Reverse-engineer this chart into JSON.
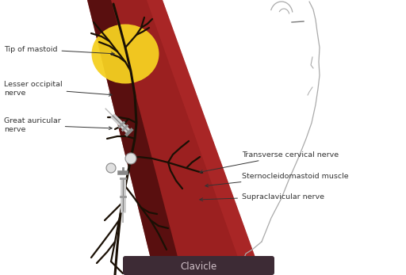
{
  "bg": "#ffffff",
  "muscle_color": "#9B2020",
  "muscle_dark": "#3d0808",
  "nerve_color": "#1a1005",
  "mastoid_color": "#f5d020",
  "clav_bg": "#3d2b35",
  "clav_fg": "#d0c0c8",
  "face_color": "#aaaaaa",
  "ann_color": "#333333",
  "clavicle_label": "Clavicle",
  "left_labels": [
    "Tip of mastoid",
    "Lesser occipital\nnerve",
    "Great auricular\nnerve"
  ],
  "right_labels": [
    "Transverse cervical nerve",
    "Sternocleidomastoid muscle",
    "Supraclavicular nerve"
  ]
}
